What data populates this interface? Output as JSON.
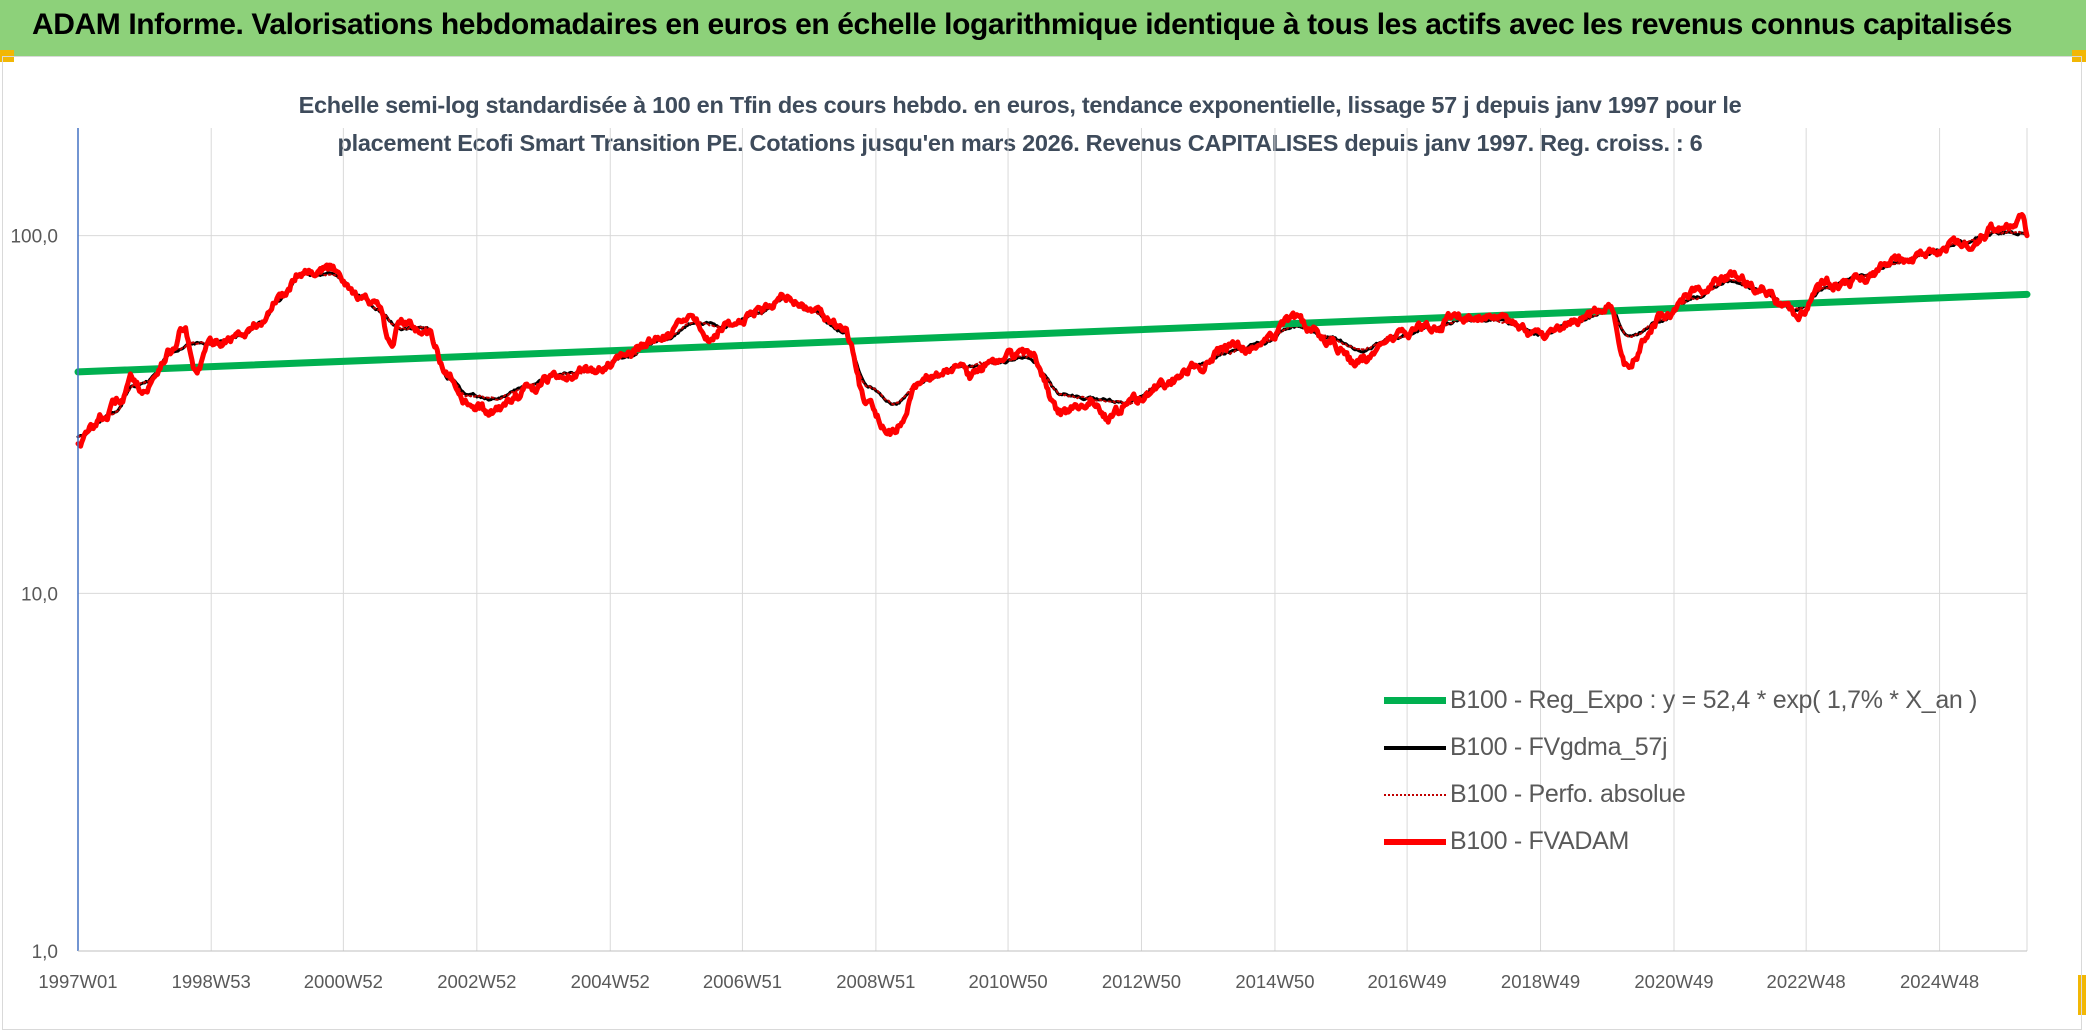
{
  "header": {
    "title": "ADAM Informe. Valorisations hebdomadaires en euros en échelle logarithmique identique à tous les actifs avec les revenus connus capitalisés"
  },
  "chart_data": {
    "type": "line",
    "title": "",
    "subtitle_lines": [
      "Echelle semi-log standardisée à 100 en Tfin des cours hebdo. en euros, tendance exponentielle, lissage 57 j depuis janv 1997 pour le",
      "placement Ecofi Smart Transition PE. Cotations jusqu'en mars 2026. Revenus CAPITALISES depuis janv 1997. Reg. croiss. : 6"
    ],
    "xlabel": "",
    "ylabel": "",
    "y_scale": "log",
    "ylim": [
      1,
      200
    ],
    "y_ticks": [
      1,
      10,
      100
    ],
    "y_tick_labels": [
      "1,0",
      "10,0",
      "100,0"
    ],
    "x_range": [
      "1997W01",
      "2026W12"
    ],
    "x_ticks": [
      "1997W01",
      "1998W53",
      "2000W52",
      "2002W52",
      "2004W52",
      "2006W51",
      "2008W51",
      "2010W50",
      "2012W50",
      "2014W50",
      "2016W49",
      "2018W49",
      "2020W49",
      "2022W48",
      "2024W48"
    ],
    "grid": {
      "vertical": true,
      "horizontal": true
    },
    "legend_position": "right",
    "series": [
      {
        "name": "B100 - Reg_Expo : y = 52,4 * exp( 1,7% *  X_an )",
        "color": "#00b050",
        "style": "solid",
        "points": [
          [
            "1997W01",
            41.6
          ],
          [
            "2026W12",
            68.5
          ]
        ]
      },
      {
        "name": "B100 - FVgdma_57j",
        "color": "#000000",
        "style": "solid",
        "points": [
          [
            "1997W01",
            27.5
          ],
          [
            "1997W30",
            32
          ],
          [
            "1997W44",
            38
          ],
          [
            "1998W01",
            39
          ],
          [
            "1998W25",
            48
          ],
          [
            "1998W40",
            50
          ],
          [
            "1999W01",
            50
          ],
          [
            "1999W26",
            53
          ],
          [
            "1999W40",
            57
          ],
          [
            "2000W01",
            66
          ],
          [
            "2000W20",
            78
          ],
          [
            "2000W44",
            78
          ],
          [
            "2001W13",
            68
          ],
          [
            "2001W26",
            62
          ],
          [
            "2001W44",
            55
          ],
          [
            "2002W13",
            55
          ],
          [
            "2002W30",
            40
          ],
          [
            "2002W44",
            36
          ],
          [
            "2003W13",
            35
          ],
          [
            "2003W40",
            38
          ],
          [
            "2004W13",
            41
          ],
          [
            "2004W40",
            42
          ],
          [
            "2005W13",
            46
          ],
          [
            "2005W40",
            51
          ],
          [
            "2006W13",
            57
          ],
          [
            "2006W40",
            56
          ],
          [
            "2007W13",
            61
          ],
          [
            "2007W30",
            66
          ],
          [
            "2007W52",
            62
          ],
          [
            "2008W26",
            54
          ],
          [
            "2008W44",
            38
          ],
          [
            "2009W13",
            34
          ],
          [
            "2009W40",
            40
          ],
          [
            "2010W13",
            43
          ],
          [
            "2010W40",
            44
          ],
          [
            "2011W13",
            46
          ],
          [
            "2011W40",
            36
          ],
          [
            "2012W13",
            35
          ],
          [
            "2012W40",
            34
          ],
          [
            "2013W13",
            38
          ],
          [
            "2013W40",
            43
          ],
          [
            "2014W13",
            47
          ],
          [
            "2014W40",
            50
          ],
          [
            "2015W13",
            56
          ],
          [
            "2015W40",
            52
          ],
          [
            "2016W13",
            48
          ],
          [
            "2016W40",
            52
          ],
          [
            "2017W13",
            55
          ],
          [
            "2017W40",
            58
          ],
          [
            "2018W13",
            58
          ],
          [
            "2018W52",
            53
          ],
          [
            "2019W26",
            58
          ],
          [
            "2019W52",
            62
          ],
          [
            "2020W13",
            52
          ],
          [
            "2020W40",
            58
          ],
          [
            "2021W13",
            67
          ],
          [
            "2021W40",
            75
          ],
          [
            "2022W13",
            70
          ],
          [
            "2022W40",
            62
          ],
          [
            "2023W13",
            72
          ],
          [
            "2023W40",
            77
          ],
          [
            "2024W13",
            84
          ],
          [
            "2024W40",
            89
          ],
          [
            "2025W13",
            96
          ],
          [
            "2025W40",
            102
          ],
          [
            "2026W12",
            102
          ]
        ]
      },
      {
        "name": "B100 - Perfo. absolue",
        "color": "#c00000",
        "style": "dotted",
        "points": [
          [
            "1997W01",
            27.5
          ],
          [
            "1997W30",
            32
          ],
          [
            "1997W44",
            38
          ],
          [
            "1998W01",
            39
          ],
          [
            "1998W25",
            48
          ],
          [
            "1998W40",
            50
          ],
          [
            "1999W01",
            50
          ],
          [
            "1999W26",
            53
          ],
          [
            "1999W40",
            57
          ],
          [
            "2000W01",
            66
          ],
          [
            "2000W20",
            78
          ],
          [
            "2000W44",
            78
          ],
          [
            "2001W13",
            68
          ],
          [
            "2001W26",
            62
          ],
          [
            "2001W44",
            55
          ],
          [
            "2002W13",
            55
          ],
          [
            "2002W30",
            40
          ],
          [
            "2002W44",
            36
          ],
          [
            "2003W13",
            35
          ],
          [
            "2003W40",
            38
          ],
          [
            "2004W13",
            41
          ],
          [
            "2004W40",
            42
          ],
          [
            "2005W13",
            46
          ],
          [
            "2005W40",
            51
          ],
          [
            "2006W13",
            57
          ],
          [
            "2006W40",
            56
          ],
          [
            "2007W13",
            61
          ],
          [
            "2007W30",
            66
          ],
          [
            "2007W52",
            62
          ],
          [
            "2008W26",
            54
          ],
          [
            "2008W44",
            38
          ],
          [
            "2009W13",
            34
          ],
          [
            "2009W40",
            40
          ],
          [
            "2010W13",
            43
          ],
          [
            "2010W40",
            44
          ],
          [
            "2011W13",
            46
          ],
          [
            "2011W40",
            36
          ],
          [
            "2012W13",
            35
          ],
          [
            "2012W40",
            34
          ],
          [
            "2013W13",
            38
          ],
          [
            "2013W40",
            43
          ],
          [
            "2014W13",
            47
          ],
          [
            "2014W40",
            50
          ],
          [
            "2015W13",
            56
          ],
          [
            "2015W40",
            52
          ],
          [
            "2016W13",
            48
          ],
          [
            "2016W40",
            52
          ],
          [
            "2017W13",
            55
          ],
          [
            "2017W40",
            58
          ],
          [
            "2018W13",
            58
          ],
          [
            "2018W52",
            53
          ],
          [
            "2019W26",
            58
          ],
          [
            "2019W52",
            62
          ],
          [
            "2020W13",
            52
          ],
          [
            "2020W40",
            58
          ],
          [
            "2021W13",
            67
          ],
          [
            "2021W40",
            75
          ],
          [
            "2022W13",
            70
          ],
          [
            "2022W40",
            62
          ],
          [
            "2023W13",
            72
          ],
          [
            "2023W40",
            77
          ],
          [
            "2024W13",
            84
          ],
          [
            "2024W40",
            89
          ],
          [
            "2025W13",
            96
          ],
          [
            "2025W40",
            102
          ],
          [
            "2026W12",
            102
          ]
        ]
      },
      {
        "name": "B100 - FVADAM",
        "color": "#ff0000",
        "style": "solid",
        "points": [
          [
            "1997W01",
            26.5
          ],
          [
            "1997W20",
            31
          ],
          [
            "1997W35",
            35
          ],
          [
            "1997W44",
            40
          ],
          [
            "1998W01",
            37
          ],
          [
            "1998W20",
            47
          ],
          [
            "1998W32",
            55
          ],
          [
            "1998W40",
            41
          ],
          [
            "1999W01",
            50
          ],
          [
            "1999W26",
            53
          ],
          [
            "1999W40",
            57
          ],
          [
            "2000W01",
            67
          ],
          [
            "2000W20",
            80
          ],
          [
            "2000W44",
            81
          ],
          [
            "2001W13",
            68
          ],
          [
            "2001W26",
            64
          ],
          [
            "2001W37",
            49
          ],
          [
            "2001W44",
            57
          ],
          [
            "2002W13",
            55
          ],
          [
            "2002W30",
            40
          ],
          [
            "2002W40",
            34
          ],
          [
            "2003W10",
            32
          ],
          [
            "2003W40",
            37
          ],
          [
            "2004W13",
            41
          ],
          [
            "2004W40",
            42
          ],
          [
            "2005W13",
            47
          ],
          [
            "2005W40",
            52
          ],
          [
            "2006W13",
            58
          ],
          [
            "2006W24",
            52
          ],
          [
            "2006W40",
            56
          ],
          [
            "2007W13",
            62
          ],
          [
            "2007W30",
            68
          ],
          [
            "2007W52",
            63
          ],
          [
            "2008W26",
            55
          ],
          [
            "2008W44",
            34
          ],
          [
            "2009W09",
            28
          ],
          [
            "2009W40",
            41
          ],
          [
            "2010W13",
            43
          ],
          [
            "2010W20",
            40
          ],
          [
            "2010W40",
            45
          ],
          [
            "2011W13",
            47
          ],
          [
            "2011W40",
            32
          ],
          [
            "2012W13",
            35
          ],
          [
            "2012W24",
            31
          ],
          [
            "2012W40",
            34
          ],
          [
            "2013W13",
            38
          ],
          [
            "2013W40",
            43
          ],
          [
            "2014W13",
            48
          ],
          [
            "2014W40",
            49
          ],
          [
            "2015W13",
            58
          ],
          [
            "2015W40",
            51
          ],
          [
            "2016W07",
            44
          ],
          [
            "2016W40",
            52
          ],
          [
            "2017W13",
            56
          ],
          [
            "2017W40",
            59
          ],
          [
            "2018W13",
            59
          ],
          [
            "2018W52",
            51
          ],
          [
            "2019W26",
            59
          ],
          [
            "2019W52",
            64
          ],
          [
            "2020W11",
            43
          ],
          [
            "2020W40",
            59
          ],
          [
            "2021W13",
            69
          ],
          [
            "2021W40",
            77
          ],
          [
            "2022W13",
            71
          ],
          [
            "2022W40",
            60
          ],
          [
            "2023W13",
            73
          ],
          [
            "2023W40",
            76
          ],
          [
            "2024W13",
            85
          ],
          [
            "2024W40",
            90
          ],
          [
            "2025W13",
            94
          ],
          [
            "2025W40",
            104
          ],
          [
            "2026W08",
            111
          ],
          [
            "2026W12",
            100
          ]
        ]
      }
    ]
  }
}
